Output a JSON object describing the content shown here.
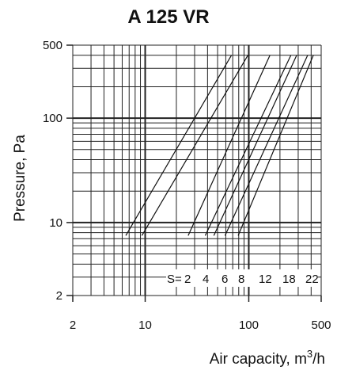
{
  "chart_data": {
    "type": "line",
    "title": "A 125 VR",
    "xlabel": "Air capacity, m³/h",
    "ylabel": "Pressure, Pa",
    "x_scale": "log",
    "y_scale": "log",
    "xlim": [
      2,
      500
    ],
    "ylim": [
      2,
      500
    ],
    "x_ticks": [
      "2",
      "10",
      "100",
      "500"
    ],
    "y_ticks": [
      "2",
      "10",
      "100",
      "500"
    ],
    "grid": true,
    "s_prefix": "S=",
    "series": [
      {
        "name": "2",
        "x": [
          6.5,
          68
        ],
        "y": [
          7.5,
          400
        ]
      },
      {
        "name": "4",
        "x": [
          9.3,
          98
        ],
        "y": [
          7.5,
          400
        ]
      },
      {
        "name": "6",
        "x": [
          26,
          160
        ],
        "y": [
          7.5,
          400
        ]
      },
      {
        "name": "8",
        "x": [
          38,
          255
        ],
        "y": [
          7.5,
          400
        ]
      },
      {
        "name": "12",
        "x": [
          46,
          290
        ],
        "y": [
          7.5,
          400
        ]
      },
      {
        "name": "18",
        "x": [
          59,
          370
        ],
        "y": [
          7.5,
          400
        ]
      },
      {
        "name": "22",
        "x": [
          79,
          420
        ],
        "y": [
          7.5,
          400
        ]
      }
    ]
  }
}
